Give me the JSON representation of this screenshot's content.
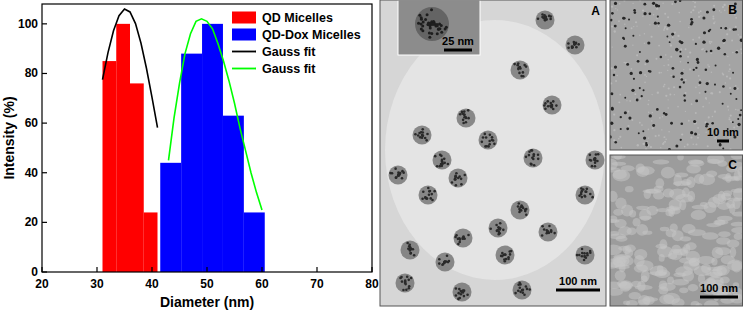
{
  "chart_data": {
    "type": "bar",
    "xlabel": "Diameter (nm)",
    "ylabel": "Intensity (%)",
    "xlim": [
      20,
      80
    ],
    "xticks": [
      20,
      30,
      40,
      50,
      60,
      70,
      80
    ],
    "ylim": [
      0,
      108
    ],
    "yticks": [
      0,
      20,
      40,
      60,
      80,
      100
    ],
    "legend": "upper right",
    "series": [
      {
        "name": "QD Micelles",
        "type": "bar",
        "color": "#ff0000",
        "bins": [
          31,
          33.5,
          36,
          38.5,
          41
        ],
        "values": [
          85,
          100,
          76,
          24
        ]
      },
      {
        "name": "QD-Dox Micelles",
        "type": "bar",
        "color": "#0000ff",
        "bins": [
          41.5,
          45.3,
          49.1,
          52.9,
          56.7,
          60.5
        ],
        "values": [
          44,
          88,
          100,
          63,
          24
        ]
      },
      {
        "name": "Gauss fit",
        "type": "line",
        "color": "#000000",
        "x": [
          31,
          32,
          33,
          34,
          35,
          36,
          37,
          38,
          39,
          40,
          41
        ],
        "values": [
          77.5,
          88.4,
          97.2,
          103.3,
          106,
          104.8,
          100.1,
          92.2,
          82,
          70.4,
          58.2
        ]
      },
      {
        "name": "Gauss fit",
        "type": "line",
        "color": "#00ff00",
        "x": [
          43,
          44,
          45,
          46,
          47,
          48,
          49,
          50,
          51,
          52,
          53,
          54,
          55,
          56,
          57,
          58,
          59,
          60
        ],
        "values": [
          45,
          62,
          76,
          88,
          96,
          101,
          102,
          101,
          98,
          92,
          85,
          77,
          68,
          58,
          49,
          40,
          32,
          25
        ]
      }
    ]
  },
  "panels": [
    {
      "label": "A",
      "scale_bar": "100 nm",
      "inset": {
        "scale_bar": "25 nm"
      }
    },
    {
      "label": "B",
      "scale_bar": "10 nm"
    },
    {
      "label": "C",
      "scale_bar": "100 nm"
    }
  ]
}
